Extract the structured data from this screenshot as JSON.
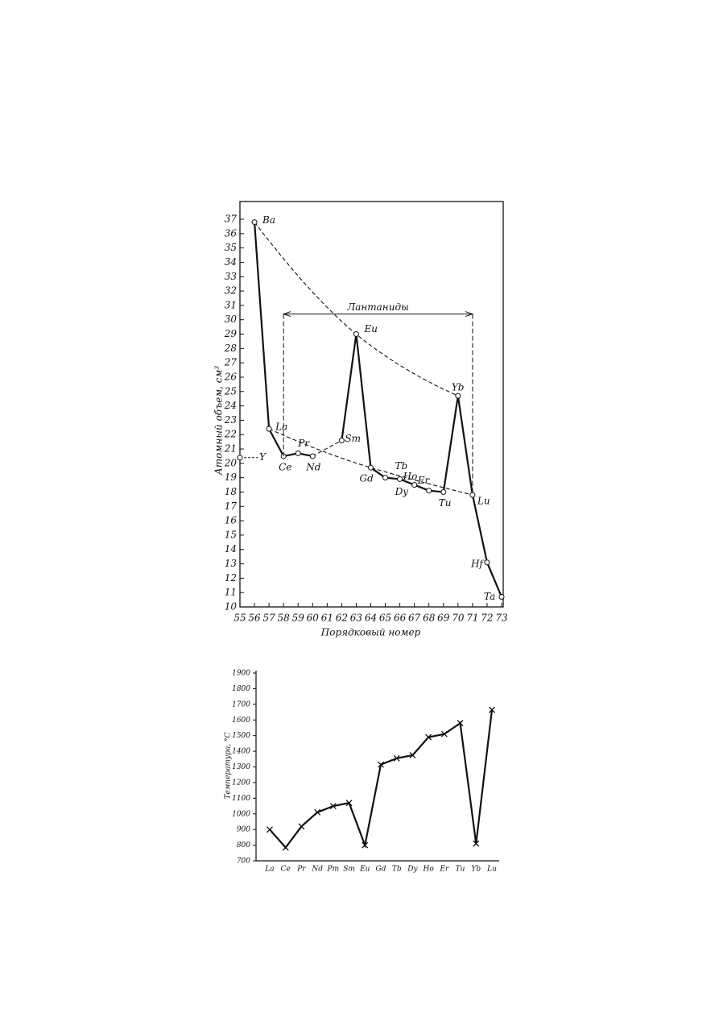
{
  "chart_data": [
    {
      "type": "line",
      "x_label": "Порядковый номер",
      "y_label": "Атомный объем, см³",
      "marker": "circle",
      "color": "#111",
      "x": [
        56,
        57,
        58,
        59,
        60,
        61,
        62,
        63,
        64,
        65,
        66,
        67,
        68,
        69,
        70,
        71,
        72,
        73
      ],
      "values": [
        36.8,
        22.4,
        20.5,
        20.7,
        20.5,
        null,
        21.6,
        29.0,
        19.7,
        19.0,
        18.9,
        18.5,
        18.1,
        18.0,
        24.7,
        17.8,
        13.1,
        10.7
      ],
      "point_labels": [
        "Ba",
        "La",
        "Ce",
        "Pr",
        "Nd",
        null,
        "Sm",
        "Eu",
        "Gd",
        "Tb",
        "Dy",
        "Ho",
        "Er",
        "Tu",
        "Yb",
        "Lu",
        "Hf",
        "Ta"
      ],
      "reference_point": {
        "label": "Y",
        "x": 55,
        "y": 20.4
      },
      "bracket": {
        "label": "Лантаниды",
        "x": [
          58,
          71
        ],
        "y": 30.4
      },
      "xlim": [
        55,
        73
      ],
      "xticks": [
        55,
        56,
        57,
        58,
        59,
        60,
        61,
        62,
        63,
        64,
        65,
        66,
        67,
        68,
        69,
        70,
        71,
        72,
        73
      ],
      "ylim": [
        10,
        37.8
      ],
      "yticks": [
        10,
        11,
        12,
        13,
        14,
        15,
        16,
        17,
        18,
        19,
        20,
        21,
        22,
        23,
        24,
        25,
        26,
        27,
        28,
        29,
        30,
        31,
        32,
        33,
        34,
        35,
        36,
        37
      ]
    },
    {
      "type": "line",
      "y_label": "Температура, °С",
      "marker": "x",
      "color": "#111",
      "categories": [
        "La",
        "Ce",
        "Pr",
        "Nd",
        "Pm",
        "Sm",
        "Eu",
        "Gd",
        "Tb",
        "Dy",
        "Ho",
        "Er",
        "Tu",
        "Yb",
        "Lu"
      ],
      "values": [
        900,
        785,
        920,
        1010,
        1050,
        1070,
        800,
        1315,
        1355,
        1375,
        1490,
        1510,
        1580,
        810,
        1665
      ],
      "ylim": [
        700,
        1900
      ],
      "yticks": [
        700,
        800,
        900,
        1000,
        1100,
        1200,
        1300,
        1400,
        1500,
        1600,
        1700,
        1800,
        1900
      ]
    }
  ]
}
